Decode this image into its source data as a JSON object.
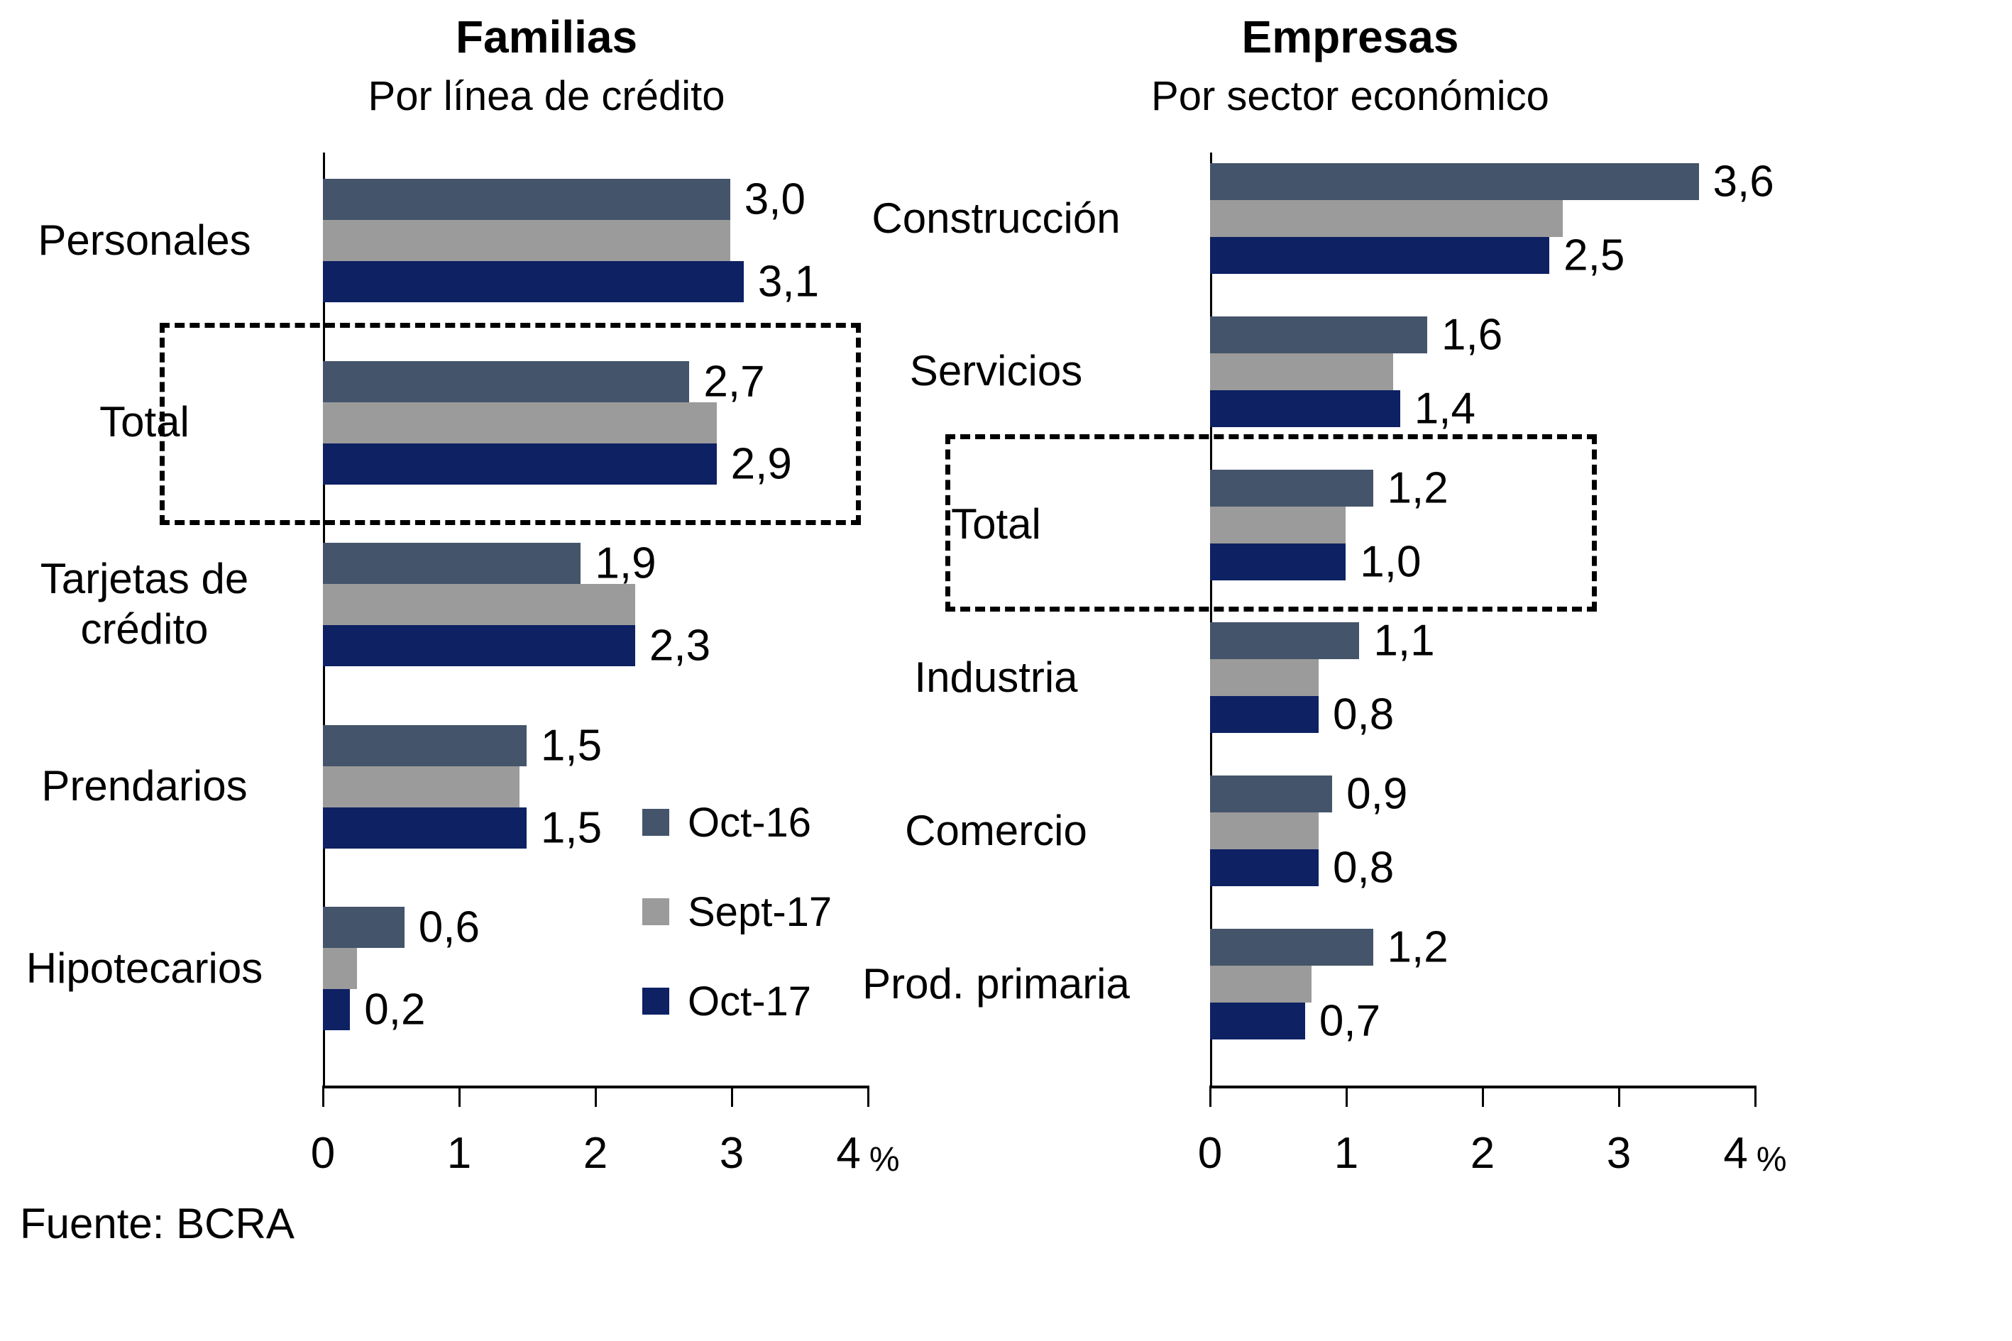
{
  "source": {
    "text": "Fuente: BCRA"
  },
  "legend": {
    "position": "inside-left-chart",
    "items": [
      {
        "label": "Oct-16",
        "color": "#44546A"
      },
      {
        "label": "Sept-17",
        "color": "#9B9B9B"
      },
      {
        "label": "Oct-17",
        "color": "#0D2163"
      }
    ]
  },
  "chart_data": [
    {
      "type": "bar",
      "orientation": "horizontal",
      "title": "Familias",
      "subtitle": "Por línea de crédito",
      "xlim": [
        0,
        4
      ],
      "x_ticks": [
        "0",
        "1",
        "2",
        "3",
        "4"
      ],
      "x_unit": "%",
      "grid": false,
      "highlight_category": "Total",
      "categories": [
        {
          "label": "Personales",
          "label_lines": [
            "Personales"
          ]
        },
        {
          "label": "Total",
          "label_lines": [
            "Total"
          ]
        },
        {
          "label": "Tarjetas de crédito",
          "label_lines": [
            "Tarjetas de",
            "crédito"
          ]
        },
        {
          "label": "Prendarios",
          "label_lines": [
            "Prendarios"
          ]
        },
        {
          "label": "Hipotecarios",
          "label_lines": [
            "Hipotecarios"
          ]
        }
      ],
      "series": [
        {
          "name": "Oct-16",
          "color": "#44546A",
          "values": [
            3.0,
            2.7,
            1.9,
            1.5,
            0.6
          ],
          "labels": [
            "3,0",
            "2,7",
            "1,9",
            "1,5",
            "0,6"
          ]
        },
        {
          "name": "Sept-17",
          "color": "#9B9B9B",
          "values": [
            3.0,
            2.9,
            2.3,
            1.45,
            0.25
          ],
          "labels": [
            null,
            null,
            null,
            null,
            null
          ]
        },
        {
          "name": "Oct-17",
          "color": "#0D2163",
          "values": [
            3.1,
            2.9,
            2.3,
            1.5,
            0.2
          ],
          "labels": [
            "3,1",
            "2,9",
            "2,3",
            "1,5",
            "0,2"
          ]
        }
      ]
    },
    {
      "type": "bar",
      "orientation": "horizontal",
      "title": "Empresas",
      "subtitle": "Por sector económico",
      "xlim": [
        0,
        4
      ],
      "x_ticks": [
        "0",
        "1",
        "2",
        "3",
        "4"
      ],
      "x_unit": "%",
      "grid": false,
      "highlight_category": "Total",
      "categories": [
        {
          "label": "Construcción",
          "label_lines": [
            "Construcción"
          ]
        },
        {
          "label": "Servicios",
          "label_lines": [
            "Servicios"
          ]
        },
        {
          "label": "Total",
          "label_lines": [
            "Total"
          ]
        },
        {
          "label": "Industria",
          "label_lines": [
            "Industria"
          ]
        },
        {
          "label": "Comercio",
          "label_lines": [
            "Comercio"
          ]
        },
        {
          "label": "Prod. primaria",
          "label_lines": [
            "Prod. primaria"
          ]
        }
      ],
      "series": [
        {
          "name": "Oct-16",
          "color": "#44546A",
          "values": [
            3.6,
            1.6,
            1.2,
            1.1,
            0.9,
            1.2
          ],
          "labels": [
            "3,6",
            "1,6",
            "1,2",
            "1,1",
            "0,9",
            "1,2"
          ]
        },
        {
          "name": "Sept-17",
          "color": "#9B9B9B",
          "values": [
            2.6,
            1.35,
            1.0,
            0.8,
            0.8,
            0.75
          ],
          "labels": [
            null,
            null,
            null,
            null,
            null,
            null
          ]
        },
        {
          "name": "Oct-17",
          "color": "#0D2163",
          "values": [
            2.5,
            1.4,
            1.0,
            0.8,
            0.8,
            0.7
          ],
          "labels": [
            "2,5",
            "1,4",
            "1,0",
            "0,8",
            "0,8",
            "0,7"
          ]
        }
      ]
    }
  ]
}
